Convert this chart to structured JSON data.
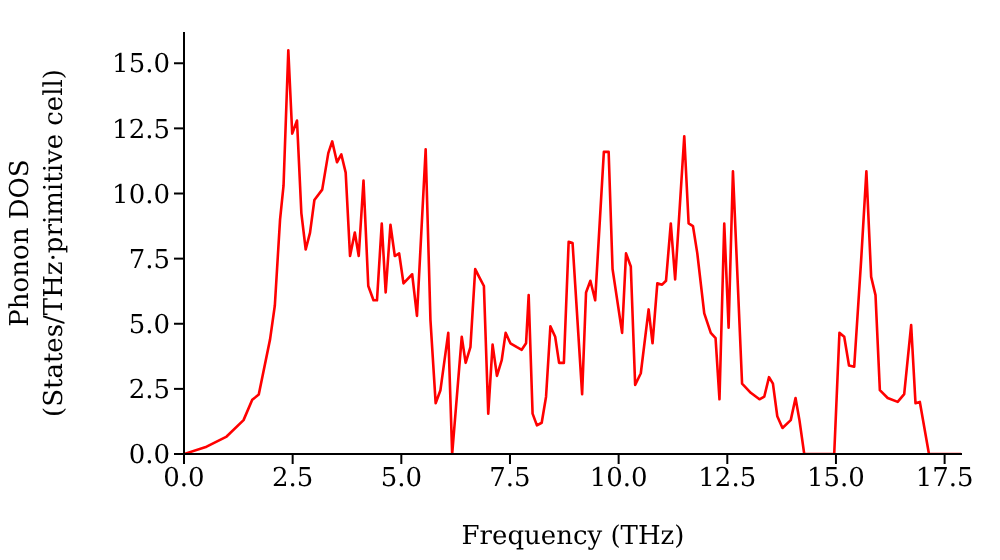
{
  "chart_data": {
    "type": "line",
    "xlabel": "Frequency (THz)",
    "ylabel": "Phonon DOS\n(States/THz·primitive cell)",
    "xlim": [
      0,
      17.9
    ],
    "ylim": [
      0,
      16.2
    ],
    "xticks": [
      {
        "value": 0,
        "label": "0.0"
      },
      {
        "value": 2.5,
        "label": "2.5"
      },
      {
        "value": 5,
        "label": "5.0"
      },
      {
        "value": 7.5,
        "label": "7.5"
      },
      {
        "value": 10,
        "label": "10.0"
      },
      {
        "value": 12.5,
        "label": "12.5"
      },
      {
        "value": 15,
        "label": "15.0"
      },
      {
        "value": 17.5,
        "label": "17.5"
      }
    ],
    "yticks": [
      {
        "value": 0,
        "label": "0.0"
      },
      {
        "value": 2.5,
        "label": "2.5"
      },
      {
        "value": 5,
        "label": "5.0"
      },
      {
        "value": 7.5,
        "label": "7.5"
      },
      {
        "value": 10,
        "label": "10.0"
      },
      {
        "value": 12.5,
        "label": "12.5"
      },
      {
        "value": 15,
        "label": "15.0"
      }
    ],
    "grid": false,
    "legend": false,
    "marker": "none",
    "line_style": "solid",
    "series": [
      {
        "color": "#ff0000",
        "x": [
          0,
          0.52,
          0.98,
          1.37,
          1.57,
          1.72,
          1.98,
          2.09,
          2.21,
          2.29,
          2.4,
          2.49,
          2.6,
          2.7,
          2.8,
          2.9,
          3.0,
          3.18,
          3.32,
          3.41,
          3.52,
          3.62,
          3.72,
          3.82,
          3.93,
          4.02,
          4.13,
          4.24,
          4.36,
          4.44,
          4.55,
          4.64,
          4.75,
          4.85,
          4.95,
          5.05,
          5.25,
          5.36,
          5.56,
          5.67,
          5.79,
          5.9,
          6.08,
          6.17,
          6.39,
          6.48,
          6.59,
          6.7,
          6.79,
          6.9,
          7.0,
          7.1,
          7.2,
          7.31,
          7.4,
          7.51,
          7.66,
          7.77,
          7.87,
          7.93,
          8.02,
          8.12,
          8.23,
          8.33,
          8.43,
          8.54,
          8.63,
          8.74,
          8.85,
          8.94,
          9.16,
          9.25,
          9.35,
          9.46,
          9.66,
          9.77,
          9.86,
          10.08,
          10.17,
          10.28,
          10.38,
          10.51,
          10.69,
          10.78,
          10.89,
          11.0,
          11.09,
          11.2,
          11.3,
          11.51,
          11.61,
          11.71,
          11.81,
          11.97,
          12.12,
          12.23,
          12.32,
          12.43,
          12.53,
          12.63,
          12.84,
          13.04,
          13.24,
          13.35,
          13.46,
          13.55,
          13.65,
          13.77,
          13.96,
          14.07,
          14.16,
          14.27,
          14.96,
          15.08,
          15.19,
          15.3,
          15.42,
          15.58,
          15.7,
          15.81,
          15.91,
          16.01,
          16.19,
          16.42,
          16.57,
          16.73,
          16.83,
          16.93,
          17.14,
          17.88
        ],
        "values": [
          0,
          0.28,
          0.67,
          1.3,
          2.08,
          2.28,
          4.4,
          5.7,
          9.0,
          10.3,
          15.5,
          12.3,
          12.8,
          9.25,
          7.85,
          8.5,
          9.75,
          10.15,
          11.55,
          12.0,
          11.2,
          11.5,
          10.8,
          7.6,
          8.5,
          7.6,
          10.5,
          6.45,
          5.9,
          5.9,
          8.85,
          6.2,
          8.8,
          7.6,
          7.7,
          6.55,
          6.9,
          5.3,
          11.7,
          5.15,
          1.95,
          2.45,
          4.65,
          0,
          4.5,
          3.5,
          4.1,
          7.1,
          6.8,
          6.45,
          1.55,
          4.2,
          3.0,
          3.6,
          4.65,
          4.25,
          4.1,
          4.0,
          4.25,
          6.1,
          1.55,
          1.1,
          1.2,
          2.2,
          4.9,
          4.5,
          3.5,
          3.5,
          8.15,
          8.1,
          2.3,
          6.2,
          6.65,
          5.9,
          11.6,
          11.6,
          7.1,
          4.65,
          7.7,
          7.2,
          2.65,
          3.1,
          5.55,
          4.25,
          6.55,
          6.5,
          6.65,
          8.85,
          6.7,
          12.2,
          8.85,
          8.75,
          7.7,
          5.4,
          4.65,
          4.45,
          2.1,
          8.85,
          4.85,
          10.85,
          2.7,
          2.35,
          2.1,
          2.2,
          2.95,
          2.7,
          1.45,
          1.0,
          1.3,
          2.15,
          1.3,
          0,
          0,
          4.65,
          4.5,
          3.4,
          3.35,
          7.45,
          10.85,
          6.8,
          6.1,
          2.45,
          2.15,
          2.0,
          2.3,
          4.95,
          1.95,
          2.0,
          0,
          0
        ]
      }
    ]
  }
}
